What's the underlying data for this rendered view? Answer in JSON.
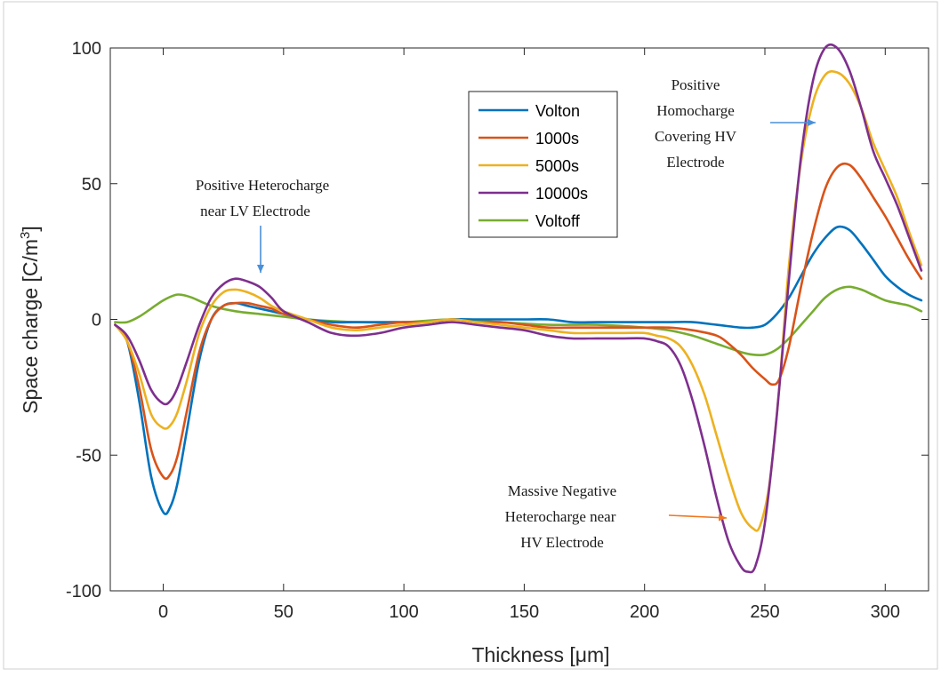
{
  "chart_data": {
    "type": "line",
    "title": "",
    "xlabel": "Thickness [μm]",
    "ylabel_main": "Space charge [C/m",
    "ylabel_sup": "3",
    "ylabel_end": "]",
    "xlim": [
      -22,
      318
    ],
    "ylim": [
      -100,
      100
    ],
    "xticks": [
      0,
      50,
      100,
      150,
      200,
      250,
      300
    ],
    "yticks": [
      -100,
      -50,
      0,
      50,
      100
    ],
    "legend_position": "upper-center",
    "series": [
      {
        "name": "Volton",
        "color": "#0072BD",
        "x": [
          -20,
          -15,
          -10,
          -5,
          0,
          3,
          6,
          10,
          15,
          20,
          25,
          30,
          35,
          40,
          45,
          50,
          60,
          70,
          80,
          90,
          100,
          110,
          120,
          130,
          140,
          150,
          160,
          170,
          180,
          190,
          200,
          210,
          220,
          230,
          240,
          245,
          250,
          255,
          260,
          265,
          270,
          275,
          280,
          285,
          290,
          295,
          300,
          305,
          310,
          315
        ],
        "y": [
          -2,
          -8,
          -30,
          -58,
          -71,
          -69,
          -60,
          -40,
          -15,
          0,
          5,
          6,
          5,
          4,
          3,
          2,
          0,
          -1,
          -1,
          -1,
          -1,
          -1,
          0,
          0,
          0,
          0,
          0,
          -1,
          -1,
          -1,
          -1,
          -1,
          -1,
          -2,
          -3,
          -3,
          -2,
          2,
          8,
          16,
          24,
          30,
          34,
          33,
          28,
          22,
          16,
          12,
          9,
          7
        ]
      },
      {
        "name": "1000s",
        "color": "#D95319",
        "x": [
          -20,
          -15,
          -10,
          -5,
          0,
          3,
          6,
          10,
          15,
          20,
          25,
          30,
          35,
          40,
          45,
          50,
          60,
          70,
          80,
          90,
          100,
          110,
          120,
          130,
          140,
          150,
          160,
          170,
          180,
          190,
          200,
          210,
          220,
          230,
          235,
          240,
          245,
          250,
          253,
          256,
          260,
          265,
          270,
          275,
          280,
          285,
          290,
          295,
          300,
          305,
          310,
          315
        ],
        "y": [
          -2,
          -8,
          -25,
          -48,
          -58,
          -57,
          -50,
          -33,
          -12,
          0,
          5,
          6,
          6,
          5,
          4,
          2,
          0,
          -2,
          -3,
          -2,
          -1,
          -1,
          0,
          -1,
          -1,
          -2,
          -3,
          -3,
          -3,
          -3,
          -3,
          -3,
          -4,
          -6,
          -9,
          -13,
          -18,
          -22,
          -24,
          -22,
          -10,
          12,
          32,
          48,
          56,
          57,
          52,
          45,
          38,
          30,
          22,
          15
        ]
      },
      {
        "name": "5000s",
        "color": "#EDB120",
        "x": [
          -20,
          -15,
          -10,
          -5,
          0,
          3,
          6,
          10,
          15,
          20,
          25,
          30,
          35,
          40,
          45,
          50,
          60,
          70,
          80,
          90,
          100,
          110,
          120,
          130,
          140,
          150,
          160,
          170,
          180,
          190,
          200,
          205,
          210,
          215,
          220,
          225,
          230,
          235,
          240,
          245,
          248,
          252,
          256,
          260,
          265,
          270,
          275,
          280,
          285,
          290,
          295,
          300,
          305,
          310,
          315
        ],
        "y": [
          -2,
          -8,
          -20,
          -35,
          -40,
          -39,
          -34,
          -22,
          -5,
          5,
          10,
          11,
          10,
          8,
          5,
          3,
          0,
          -3,
          -4,
          -3,
          -2,
          -1,
          0,
          -1,
          -2,
          -3,
          -4,
          -5,
          -5,
          -5,
          -5,
          -6,
          -7,
          -10,
          -17,
          -28,
          -43,
          -58,
          -71,
          -77,
          -76,
          -60,
          -25,
          20,
          58,
          80,
          90,
          91,
          87,
          78,
          65,
          55,
          45,
          32,
          20
        ]
      },
      {
        "name": "10000s",
        "color": "#7E2F8E",
        "x": [
          -20,
          -15,
          -10,
          -5,
          0,
          3,
          6,
          10,
          15,
          20,
          25,
          30,
          35,
          40,
          45,
          50,
          60,
          70,
          80,
          90,
          100,
          110,
          120,
          130,
          140,
          150,
          160,
          170,
          180,
          190,
          200,
          205,
          210,
          215,
          220,
          225,
          230,
          235,
          240,
          243,
          246,
          250,
          255,
          260,
          265,
          270,
          275,
          280,
          285,
          290,
          295,
          300,
          305,
          310,
          315
        ],
        "y": [
          -2,
          -6,
          -15,
          -26,
          -31,
          -30,
          -25,
          -15,
          -2,
          8,
          13,
          15,
          14,
          12,
          8,
          3,
          -1,
          -5,
          -6,
          -5,
          -3,
          -2,
          -1,
          -2,
          -3,
          -4,
          -6,
          -7,
          -7,
          -7,
          -7,
          -8,
          -10,
          -17,
          -30,
          -47,
          -66,
          -82,
          -91,
          -93,
          -91,
          -75,
          -35,
          15,
          60,
          88,
          100,
          100,
          92,
          78,
          62,
          52,
          42,
          30,
          18
        ]
      },
      {
        "name": "Voltoff",
        "color": "#77AC30",
        "x": [
          -20,
          -15,
          -10,
          -5,
          0,
          5,
          8,
          12,
          20,
          30,
          40,
          50,
          60,
          80,
          100,
          120,
          140,
          160,
          180,
          200,
          210,
          220,
          230,
          240,
          245,
          250,
          255,
          260,
          265,
          270,
          275,
          280,
          285,
          290,
          295,
          300,
          305,
          310,
          315
        ],
        "y": [
          -1,
          -1,
          1,
          4,
          7,
          9,
          9,
          8,
          5,
          3,
          2,
          1,
          0,
          -1,
          -1,
          0,
          -1,
          -2,
          -2,
          -3,
          -4,
          -6,
          -9,
          -12,
          -13,
          -13,
          -11,
          -7,
          -2,
          3,
          8,
          11,
          12,
          11,
          9,
          7,
          6,
          5,
          3
        ]
      }
    ],
    "annotations": [
      {
        "lines": [
          "Positive Heterocharge",
          "near LV Electrode"
        ],
        "arrow_color": "#4a90d9"
      },
      {
        "lines": [
          "Positive",
          "Homocharge",
          "Covering HV",
          "Electrode"
        ],
        "arrow_color": "#4a90d9"
      },
      {
        "lines": [
          "Massive Negative",
          "Heterocharge near",
          "HV Electrode"
        ],
        "arrow_color": "#f07820"
      }
    ]
  }
}
